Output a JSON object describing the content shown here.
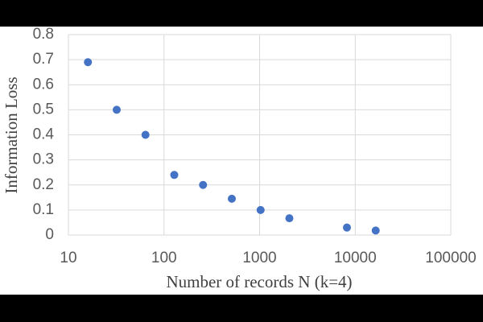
{
  "chart_data": {
    "type": "scatter",
    "xlabel": "Number of records N (k=4)",
    "ylabel": "Information Loss",
    "xscale": "log",
    "x": [
      16,
      32,
      64,
      128,
      256,
      512,
      1024,
      2048,
      8192,
      16384
    ],
    "values": [
      0.69,
      0.5,
      0.4,
      0.24,
      0.2,
      0.145,
      0.1,
      0.067,
      0.03,
      0.018
    ],
    "color": "#4472c4",
    "xlim": [
      10,
      100000
    ],
    "xticks": [
      10,
      100,
      1000,
      10000,
      100000
    ],
    "ylim": [
      0,
      0.8
    ],
    "yticks": [
      0,
      0.1,
      0.2,
      0.3,
      0.4,
      0.5,
      0.6,
      0.7,
      0.8
    ],
    "grid": true
  }
}
